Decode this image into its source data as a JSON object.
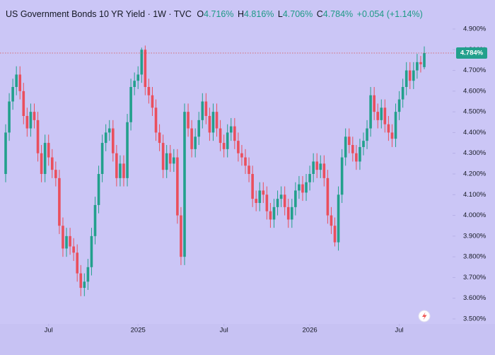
{
  "chart_data": {
    "type": "candlestick",
    "title": "US Government Bonds 10 YR Yield · 1W · TVC",
    "legend_items": [
      {
        "key": "O",
        "value": "4.716%"
      },
      {
        "key": "H",
        "value": "4.816%"
      },
      {
        "key": "L",
        "value": "4.706%"
      },
      {
        "key": "C",
        "value": "4.784%"
      }
    ],
    "change": "+0.054 (+1.14%)",
    "up_color": "#22a08c",
    "down_color": "#ea4f5d",
    "open": [
      4.2,
      4.4,
      4.55,
      4.62,
      4.68,
      4.6,
      4.48,
      4.42,
      4.5,
      4.46,
      4.3,
      4.2,
      4.35,
      4.28,
      4.22,
      4.18,
      3.95,
      3.84,
      3.9,
      3.85,
      3.82,
      3.72,
      3.65,
      3.68,
      3.75,
      3.9,
      4.05,
      4.2,
      4.35,
      4.4,
      4.42,
      4.3,
      4.18,
      4.25,
      4.18,
      4.45,
      4.62,
      4.65,
      4.68,
      4.8,
      4.62,
      4.58,
      4.52,
      4.4,
      4.35,
      4.22,
      4.3,
      4.25,
      4.28,
      4.0,
      3.8,
      4.5,
      4.42,
      4.32,
      4.38,
      4.46,
      4.55,
      4.48,
      4.4,
      4.5,
      4.42,
      4.35,
      4.32,
      4.4,
      4.43,
      4.36,
      4.3,
      4.28,
      4.24,
      4.2,
      4.08,
      4.06,
      4.12,
      4.1,
      4.02,
      3.98,
      4.04,
      4.08,
      4.1,
      4.04,
      3.98,
      4.04,
      4.12,
      4.15,
      4.11,
      4.16,
      4.2,
      4.26,
      4.22,
      4.25,
      4.18,
      4.0,
      3.95,
      3.87,
      4.1,
      4.28,
      4.38,
      4.34,
      4.3,
      4.26,
      4.33,
      4.36,
      4.42,
      4.58,
      4.5,
      4.46,
      4.52,
      4.44,
      4.4,
      4.37,
      4.5,
      4.56,
      4.62,
      4.7,
      4.65,
      4.7,
      4.74,
      4.716
    ],
    "high": [
      4.44,
      4.59,
      4.66,
      4.72,
      4.72,
      4.64,
      4.52,
      4.54,
      4.54,
      4.5,
      4.34,
      4.39,
      4.39,
      4.32,
      4.26,
      4.22,
      3.99,
      3.94,
      3.94,
      3.89,
      3.86,
      3.76,
      3.72,
      3.79,
      3.94,
      4.09,
      4.24,
      4.39,
      4.44,
      4.46,
      4.46,
      4.34,
      4.29,
      4.29,
      4.49,
      4.66,
      4.69,
      4.72,
      4.81,
      4.82,
      4.66,
      4.62,
      4.56,
      4.44,
      4.39,
      4.34,
      4.34,
      4.32,
      4.32,
      4.04,
      4.54,
      4.54,
      4.46,
      4.42,
      4.5,
      4.59,
      4.59,
      4.52,
      4.54,
      4.54,
      4.46,
      4.39,
      4.44,
      4.47,
      4.47,
      4.4,
      4.34,
      4.32,
      4.28,
      4.24,
      4.12,
      4.16,
      4.16,
      4.14,
      4.06,
      4.08,
      4.12,
      4.14,
      4.14,
      4.08,
      4.08,
      4.16,
      4.19,
      4.19,
      4.2,
      4.24,
      4.3,
      4.3,
      4.29,
      4.29,
      4.22,
      4.04,
      3.99,
      4.14,
      4.32,
      4.42,
      4.42,
      4.38,
      4.34,
      4.37,
      4.4,
      4.46,
      4.62,
      4.62,
      4.54,
      4.56,
      4.56,
      4.48,
      4.44,
      4.54,
      4.6,
      4.66,
      4.74,
      4.74,
      4.74,
      4.78,
      4.77,
      4.816
    ],
    "low": [
      4.16,
      4.36,
      4.51,
      4.58,
      4.56,
      4.44,
      4.38,
      4.38,
      4.42,
      4.26,
      4.16,
      4.16,
      4.24,
      4.18,
      4.14,
      3.91,
      3.8,
      3.8,
      3.81,
      3.78,
      3.68,
      3.61,
      3.61,
      3.64,
      3.71,
      3.86,
      4.01,
      4.16,
      4.31,
      4.36,
      4.26,
      4.14,
      4.14,
      4.14,
      4.14,
      4.41,
      4.58,
      4.61,
      4.64,
      4.58,
      4.54,
      4.48,
      4.36,
      4.31,
      4.18,
      4.18,
      4.21,
      4.21,
      3.96,
      3.76,
      3.76,
      4.38,
      4.28,
      4.28,
      4.34,
      4.42,
      4.44,
      4.36,
      4.36,
      4.38,
      4.31,
      4.28,
      4.28,
      4.36,
      4.32,
      4.26,
      4.24,
      4.2,
      4.16,
      4.04,
      4.02,
      4.02,
      4.06,
      3.98,
      3.94,
      3.94,
      4.0,
      4.04,
      4.0,
      3.94,
      3.94,
      4.0,
      4.08,
      4.07,
      4.07,
      4.12,
      4.16,
      4.18,
      4.18,
      4.14,
      3.96,
      3.91,
      3.85,
      3.83,
      4.06,
      4.24,
      4.3,
      4.26,
      4.22,
      4.22,
      4.29,
      4.32,
      4.38,
      4.46,
      4.42,
      4.42,
      4.4,
      4.36,
      4.33,
      4.33,
      4.46,
      4.52,
      4.58,
      4.61,
      4.61,
      4.66,
      4.69,
      4.706
    ],
    "close": [
      4.4,
      4.55,
      4.62,
      4.68,
      4.6,
      4.48,
      4.42,
      4.5,
      4.46,
      4.3,
      4.2,
      4.35,
      4.28,
      4.22,
      4.18,
      3.95,
      3.84,
      3.9,
      3.85,
      3.82,
      3.72,
      3.65,
      3.68,
      3.75,
      3.9,
      4.05,
      4.2,
      4.35,
      4.4,
      4.42,
      4.3,
      4.18,
      4.25,
      4.18,
      4.45,
      4.62,
      4.65,
      4.68,
      4.8,
      4.62,
      4.58,
      4.52,
      4.4,
      4.35,
      4.22,
      4.3,
      4.25,
      4.28,
      4.0,
      3.8,
      4.5,
      4.42,
      4.32,
      4.38,
      4.46,
      4.55,
      4.48,
      4.4,
      4.5,
      4.42,
      4.35,
      4.32,
      4.4,
      4.43,
      4.36,
      4.3,
      4.28,
      4.24,
      4.2,
      4.08,
      4.06,
      4.12,
      4.1,
      4.02,
      3.98,
      4.04,
      4.08,
      4.1,
      4.04,
      3.98,
      4.04,
      4.12,
      4.15,
      4.11,
      4.16,
      4.2,
      4.26,
      4.22,
      4.25,
      4.18,
      4.0,
      3.95,
      3.87,
      4.1,
      4.28,
      4.38,
      4.34,
      4.3,
      4.26,
      4.33,
      4.36,
      4.42,
      4.58,
      4.5,
      4.46,
      4.52,
      4.44,
      4.4,
      4.37,
      4.5,
      4.56,
      4.62,
      4.7,
      4.65,
      4.7,
      4.74,
      4.73,
      4.784
    ],
    "xlim": [
      0,
      117
    ],
    "xticks": [
      {
        "value": 12,
        "label": "Jul"
      },
      {
        "value": 37,
        "label": "2025"
      },
      {
        "value": 61,
        "label": "Jul"
      },
      {
        "value": 85,
        "label": "2026"
      },
      {
        "value": 110,
        "label": "Jul"
      }
    ],
    "ylim": [
      3.5,
      4.9
    ],
    "yticks": [
      {
        "value": 4.9,
        "label": "4.900%"
      },
      {
        "value": 4.8,
        "label": "4.800%"
      },
      {
        "value": 4.7,
        "label": "4.700%"
      },
      {
        "value": 4.6,
        "label": "4.600%"
      },
      {
        "value": 4.5,
        "label": "4.500%"
      },
      {
        "value": 4.4,
        "label": "4.400%"
      },
      {
        "value": 4.3,
        "label": "4.300%"
      },
      {
        "value": 4.2,
        "label": "4.200%"
      },
      {
        "value": 4.1,
        "label": "4.100%"
      },
      {
        "value": 4.0,
        "label": "4.000%"
      },
      {
        "value": 3.9,
        "label": "3.900%"
      },
      {
        "value": 3.8,
        "label": "3.800%"
      },
      {
        "value": 3.7,
        "label": "3.700%"
      },
      {
        "value": 3.6,
        "label": "3.600%"
      },
      {
        "value": 3.5,
        "label": "3.500%"
      }
    ],
    "last_price": {
      "value": 4.784,
      "label": "4.784%"
    },
    "grid": false
  }
}
